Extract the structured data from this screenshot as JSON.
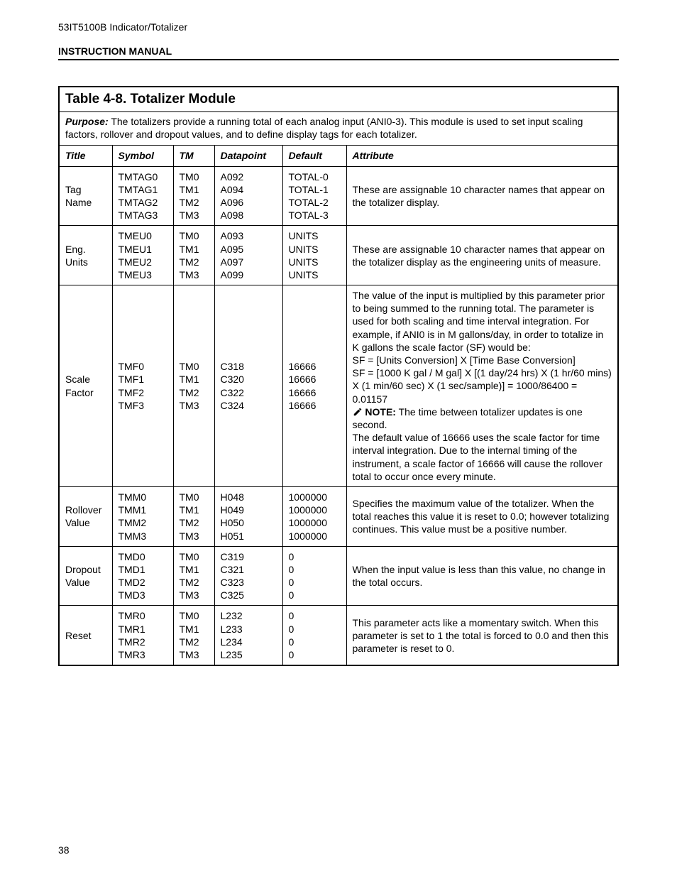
{
  "header": {
    "doc_title": "53IT5100B Indicator/Totalizer",
    "section_label": "INSTRUCTION MANUAL"
  },
  "table": {
    "title": "Table 4-8. Totalizer Module",
    "purpose_label": "Purpose:",
    "purpose_text": " The totalizers provide a running total of each analog input (ANI0-3). This module is used to set input scaling factors, rollover and dropout values, and to define display tags for each totalizer.",
    "columns": {
      "title": "Title",
      "symbol": "Symbol",
      "tm": "TM",
      "datapoint": "Datapoint",
      "default": "Default",
      "attribute": "Attribute"
    },
    "rows": [
      {
        "title": [
          "Tag",
          "Name"
        ],
        "symbol": [
          "TMTAG0",
          "TMTAG1",
          "TMTAG2",
          "TMTAG3"
        ],
        "tm": [
          "TM0",
          "TM1",
          "TM2",
          "TM3"
        ],
        "dp": [
          "A092",
          "A094",
          "A096",
          "A098"
        ],
        "def": [
          "TOTAL-0",
          "TOTAL-1",
          "TOTAL-2",
          "TOTAL-3"
        ],
        "attr_plain": "These are assignable 10 character names that appear on the totalizer display."
      },
      {
        "title": [
          "Eng.",
          "Units"
        ],
        "symbol": [
          "TMEU0",
          "TMEU1",
          "TMEU2",
          "TMEU3"
        ],
        "tm": [
          "TM0",
          "TM1",
          "TM2",
          "TM3"
        ],
        "dp": [
          "A093",
          "A095",
          "A097",
          "A099"
        ],
        "def": [
          "UNITS",
          "UNITS",
          "UNITS",
          "UNITS"
        ],
        "attr_plain": "These are assignable 10 character names that appear on the totalizer display as the engineering units of measure."
      },
      {
        "title": [
          "Scale",
          "Factor"
        ],
        "symbol": [
          "TMF0",
          "TMF1",
          "TMF2",
          "TMF3"
        ],
        "tm": [
          "TM0",
          "TM1",
          "TM2",
          "TM3"
        ],
        "dp": [
          "C318",
          "C320",
          "C322",
          "C324"
        ],
        "def": [
          "16666",
          "16666",
          "16666",
          "16666"
        ],
        "attr_complex": {
          "p1": "The value of the input is multiplied by this parameter prior to being summed to the running total. The parameter is used for both scaling and time interval integration. For example, if ANI0 is in M gallons/day, in order to totalize in K gallons the scale factor (SF) would be:",
          "p2": "SF = [Units Conversion] X [Time Base Conversion]",
          "p3": "SF = [1000 K gal / M gal] X [(1 day/24 hrs) X (1 hr/60 mins) X (1 min/60 sec) X (1 sec/sample)] = 1000/86400 = 0.01157",
          "note_label": "NOTE:",
          "note_text": " The time between totalizer updates is one second.",
          "p4": "The default value of 16666 uses the scale factor for time interval integration. Due to the internal timing of the instrument, a scale factor of 16666 will cause the rollover total to occur once every minute."
        }
      },
      {
        "title": [
          "Rollover",
          "Value"
        ],
        "symbol": [
          "TMM0",
          "TMM1",
          "TMM2",
          "TMM3"
        ],
        "tm": [
          "TM0",
          "TM1",
          "TM2",
          "TM3"
        ],
        "dp": [
          "H048",
          "H049",
          "H050",
          "H051"
        ],
        "def": [
          "1000000",
          "1000000",
          "1000000",
          "1000000"
        ],
        "attr_plain": "Specifies the maximum value of the totalizer. When the total reaches this value it is reset to 0.0; however totalizing continues. This value must be a positive number."
      },
      {
        "title": [
          "Dropout",
          "Value"
        ],
        "symbol": [
          "TMD0",
          "TMD1",
          "TMD2",
          "TMD3"
        ],
        "tm": [
          "TM0",
          "TM1",
          "TM2",
          "TM3"
        ],
        "dp": [
          "C319",
          "C321",
          "C323",
          "C325"
        ],
        "def": [
          "0",
          "0",
          "0",
          "0"
        ],
        "attr_plain": "When the input value is less than this value, no change in the total occurs."
      },
      {
        "title": [
          "Reset"
        ],
        "symbol": [
          "TMR0",
          "TMR1",
          "TMR2",
          "TMR3"
        ],
        "tm": [
          "TM0",
          "TM1",
          "TM2",
          "TM3"
        ],
        "dp": [
          "L232",
          "L233",
          "L234",
          "L235"
        ],
        "def": [
          "0",
          "0",
          "0",
          "0"
        ],
        "attr_plain": "This parameter acts like a momentary switch. When this parameter is set to 1 the total is forced to 0.0 and then this parameter is reset to 0."
      }
    ]
  },
  "footer": {
    "page_num": "38"
  }
}
